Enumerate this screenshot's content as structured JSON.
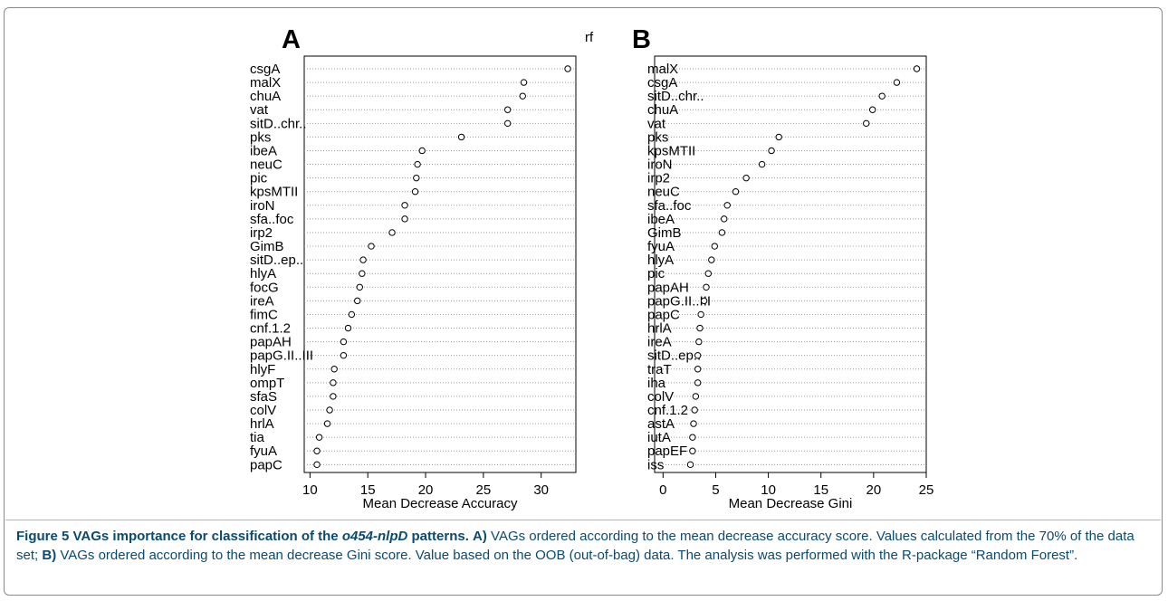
{
  "figure_title": "rf",
  "caption": {
    "figure_label": "Figure 5",
    "bold_lead_before_italic": "VAGs importance for classification of the",
    "bold_italic": "o454-nlpD",
    "bold_lead_after_italic": "patterns.",
    "part_a_marker": "A)",
    "part_a_text": "VAGs ordered according to the mean decrease accuracy score. Values calculated from the 70% of the data set;",
    "part_b_marker": "B)",
    "part_b_text": "VAGs ordered according to the mean decrease Gini score. Value based on the OOB (out-of-bag) data. The analysis was performed with the R-package “Random Forest”."
  },
  "chart_data": [
    {
      "type": "scatter",
      "panel": "A",
      "xlabel": "Mean Decrease Accuracy",
      "xlim": [
        9.5,
        33.0
      ],
      "xticks": [
        10,
        15,
        20,
        25,
        30
      ],
      "grid": true,
      "categories": [
        "csgA",
        "malX",
        "chuA",
        "vat",
        "sitD..chr..",
        "pks",
        "ibeA",
        "neuC",
        "pic",
        "kpsMTII",
        "iroN",
        "sfa..foc",
        "irp2",
        "GimB",
        "sitD..ep..",
        "hlyA",
        "focG",
        "ireA",
        "fimC",
        "cnf.1.2",
        "papAH",
        "papG.II..III",
        "hlyF",
        "ompT",
        "sfaS",
        "colV",
        "hrlA",
        "tia",
        "fyuA",
        "papC"
      ],
      "values": [
        32.3,
        28.5,
        28.4,
        27.1,
        27.1,
        23.1,
        19.7,
        19.3,
        19.2,
        19.1,
        18.2,
        18.2,
        17.1,
        15.3,
        14.6,
        14.5,
        14.3,
        14.1,
        13.6,
        13.3,
        12.9,
        12.9,
        12.1,
        12.0,
        12.0,
        11.7,
        11.5,
        10.8,
        10.6,
        10.6
      ],
      "marker": "open-circle"
    },
    {
      "type": "scatter",
      "panel": "B",
      "xlabel": "Mean Decrease Gini",
      "xlim": [
        -0.8,
        25.0
      ],
      "xticks": [
        0,
        5,
        10,
        15,
        20,
        25
      ],
      "grid": true,
      "categories": [
        "malX",
        "csgA",
        "sitD..chr..",
        "chuA",
        "vat",
        "pks",
        "kpsMTII",
        "iroN",
        "irp2",
        "neuC",
        "sfa..foc",
        "ibeA",
        "GimB",
        "fyuA",
        "hlyA",
        "pic",
        "papAH",
        "papG.II..III",
        "papC",
        "hrlA",
        "ireA",
        "sitD..ep..",
        "traT",
        "iha",
        "colV",
        "cnf.1.2",
        "astA",
        "iutA",
        "papEF",
        "iss"
      ],
      "values": [
        24.1,
        22.2,
        20.8,
        19.9,
        19.3,
        11.0,
        10.3,
        9.4,
        7.9,
        6.9,
        6.1,
        5.8,
        5.6,
        4.9,
        4.6,
        4.3,
        4.1,
        3.9,
        3.6,
        3.5,
        3.4,
        3.3,
        3.3,
        3.3,
        3.1,
        3.0,
        2.9,
        2.8,
        2.8,
        2.6
      ],
      "marker": "open-circle"
    }
  ]
}
